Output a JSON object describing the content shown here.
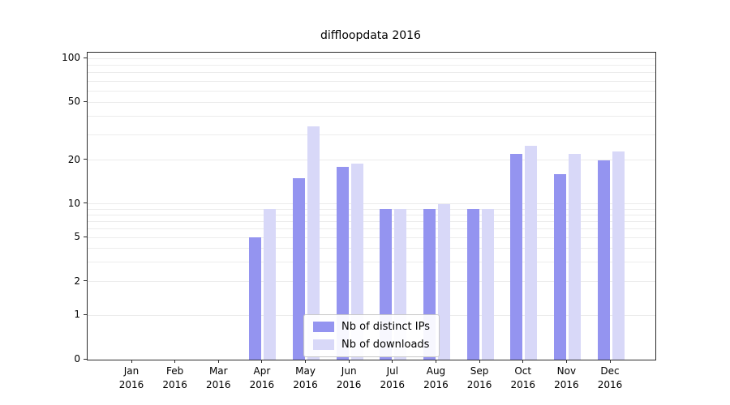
{
  "chart_data": {
    "type": "bar",
    "title": "diffloopdata 2016",
    "categories": [
      "Jan 2016",
      "Feb 2016",
      "Mar 2016",
      "Apr 2016",
      "May 2016",
      "Jun 2016",
      "Jul 2016",
      "Aug 2016",
      "Sep 2016",
      "Oct 2016",
      "Nov 2016",
      "Dec 2016"
    ],
    "series": [
      {
        "name": "Nb of distinct IPs",
        "color": "#9494f0",
        "values": [
          0,
          0,
          0,
          5,
          15,
          18,
          9,
          9,
          9,
          22,
          16,
          20
        ]
      },
      {
        "name": "Nb of downloads",
        "color": "#d8d8f8",
        "values": [
          0,
          0,
          0,
          9,
          34,
          19,
          9,
          10,
          9,
          25,
          22,
          23
        ]
      }
    ],
    "yscale": "symlog",
    "yticks": [
      0,
      1,
      2,
      5,
      10,
      20,
      50,
      100
    ],
    "minor_gridlines": [
      1,
      2,
      3,
      4,
      5,
      6,
      7,
      8,
      9,
      10,
      20,
      30,
      40,
      50,
      60,
      70,
      80,
      90,
      100
    ],
    "ylim": [
      0,
      115
    ],
    "grid": true,
    "legend_position": "lower center"
  },
  "colors": {
    "grid": "#ececec",
    "spine": "#2b2b2b",
    "legend_border": "#c8c8c8",
    "text": "#000000"
  }
}
